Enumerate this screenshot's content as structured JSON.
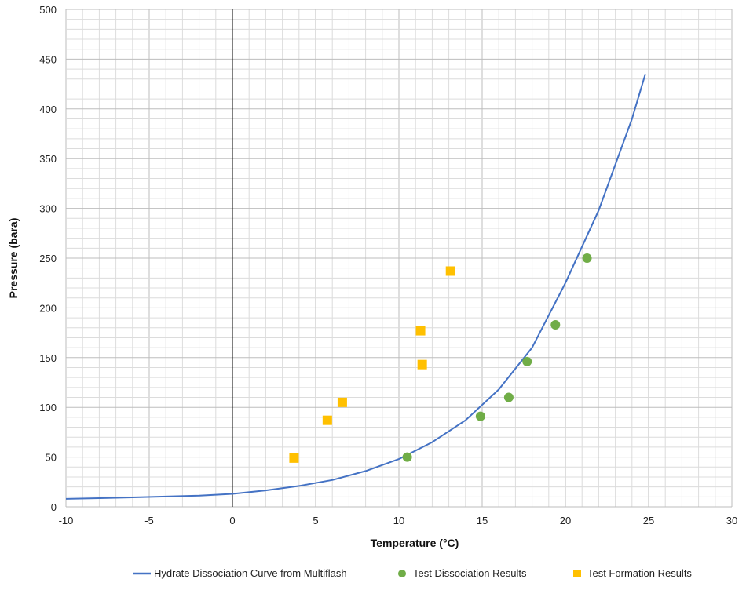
{
  "chart_data": {
    "type": "scatter",
    "title": "",
    "xlabel": "Temperature (°C)",
    "ylabel": "Pressure (bara)",
    "xlim": [
      -10,
      30
    ],
    "ylim": [
      0,
      500
    ],
    "x_ticks": [
      -10,
      -5,
      0,
      5,
      10,
      15,
      20,
      25,
      30
    ],
    "y_ticks": [
      0,
      50,
      100,
      150,
      200,
      250,
      300,
      350,
      400,
      450,
      500
    ],
    "grid": true,
    "legend_position": "bottom",
    "series": [
      {
        "name": "Hydrate Dissociation Curve from Multiflash",
        "kind": "line",
        "color": "#4472c4",
        "x": [
          -10,
          -8,
          -6,
          -4,
          -2,
          0,
          2,
          4,
          6,
          8,
          10,
          12,
          14,
          16,
          18,
          20,
          22,
          24,
          24.8
        ],
        "y": [
          8,
          8.7,
          9.5,
          10.3,
          11.2,
          13,
          16.5,
          21,
          27,
          36,
          48,
          65,
          87,
          118,
          160,
          225,
          298,
          390,
          435
        ]
      },
      {
        "name": "Test Dissociation Results",
        "kind": "scatter",
        "marker": "circle",
        "color": "#70ad47",
        "x": [
          10.5,
          14.9,
          16.6,
          17.7,
          19.4,
          21.3
        ],
        "y": [
          50,
          91,
          110,
          146,
          183,
          250
        ]
      },
      {
        "name": "Test Formation Results",
        "kind": "scatter",
        "marker": "square",
        "color": "#ffc000",
        "x": [
          3.7,
          5.7,
          6.6,
          11.3,
          11.4,
          13.1
        ],
        "y": [
          49,
          87,
          105,
          177,
          143,
          237
        ]
      }
    ]
  }
}
